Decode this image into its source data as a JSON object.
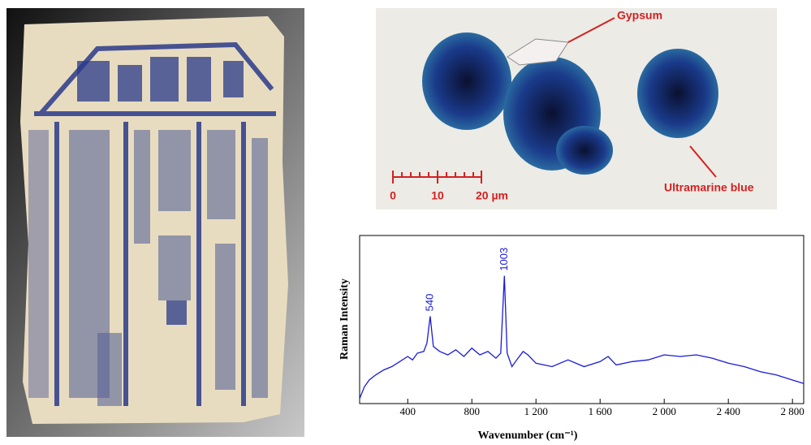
{
  "micrograph": {
    "labels": [
      "Gypsum",
      "Ultramarine blue"
    ],
    "scale_labels": [
      "0",
      "10",
      "20 µm"
    ]
  },
  "chart_data": {
    "type": "line",
    "xlabel": "Wavenumber (cm⁻¹)",
    "ylabel": "Raman Intensity",
    "x": [
      100,
      130,
      160,
      200,
      250,
      300,
      350,
      400,
      430,
      460,
      500,
      520,
      540,
      560,
      600,
      650,
      700,
      750,
      800,
      850,
      900,
      950,
      980,
      1003,
      1020,
      1050,
      1080,
      1120,
      1150,
      1200,
      1300,
      1400,
      1500,
      1600,
      1650,
      1700,
      1800,
      1900,
      2000,
      2100,
      2200,
      2300,
      2400,
      2500,
      2600,
      2700,
      2800,
      2870
    ],
    "series": [
      {
        "color": "#1a1adc",
        "values": [
          3,
          10,
          14,
          17,
          20,
          22,
          25,
          28,
          26,
          30,
          31,
          36,
          52,
          34,
          31,
          29,
          32,
          28,
          33,
          29,
          31,
          27,
          30,
          76,
          30,
          22,
          26,
          31,
          29,
          24,
          22,
          26,
          22,
          25,
          28,
          23,
          25,
          26,
          29,
          28,
          29,
          27,
          24,
          22,
          19,
          17,
          14,
          12
        ]
      }
    ],
    "xlim": [
      100,
      2870
    ],
    "ylim": [
      0,
      100
    ],
    "xticks": [
      400,
      800,
      {
        "value": 1200,
        "label": "1 200"
      },
      {
        "value": 1600,
        "label": "1 600"
      },
      {
        "value": 2000,
        "label": "2 000"
      },
      {
        "value": 2400,
        "label": "2 400"
      },
      {
        "value": 2800,
        "label": "2 800"
      }
    ],
    "annotations": [
      {
        "text": "540",
        "x": 540,
        "y": 52
      },
      {
        "text": "1003",
        "x": 1003,
        "y": 76
      }
    ]
  }
}
